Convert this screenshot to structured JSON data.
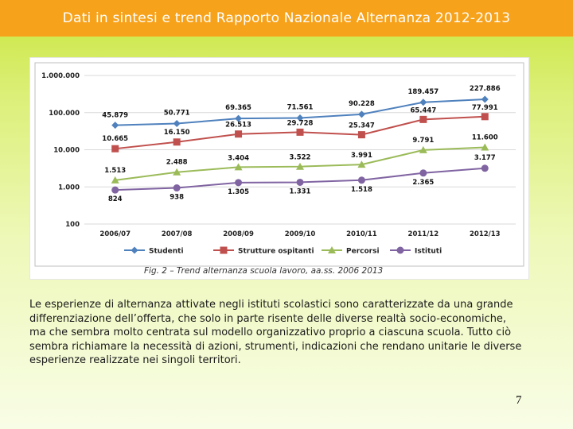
{
  "slide": {
    "title": "Dati in sintesi e trend Rapporto Nazionale Alternanza 2012-2013",
    "body": "Le esperienze di alternanza attivate negli istituti scolastici sono caratterizzate da una grande differenziazione dell’offerta, che solo in parte risente delle diverse realtà socio-economiche, ma che sembra molto centrata sul modello organizzativo proprio a ciascuna scuola. Tutto ciò sembra richiamare la necessità di azioni, strumenti, indicazioni che rendano unitarie le diverse esperienze realizzate nei singoli territori.",
    "page_number": "7",
    "title_bar_color": "#f7a21b"
  },
  "chart_data": {
    "type": "line",
    "caption": "Fig. 2 – Trend alternanza scuola lavoro, aa.ss. 2006 2013",
    "y_scale": "log",
    "ylim": [
      100,
      1000000
    ],
    "y_ticks": [
      100,
      1000,
      10000,
      100000,
      1000000
    ],
    "y_tick_labels": [
      "100",
      "1.000",
      "10.000",
      "100.000",
      "1.000.000"
    ],
    "categories": [
      "2006/07",
      "2007/08",
      "2008/09",
      "2009/10",
      "2010/11",
      "2011/12",
      "2012/13"
    ],
    "grid": true,
    "legend_position": "bottom",
    "series": [
      {
        "name": "Studenti",
        "color": "#4f81bd",
        "marker": "diamond",
        "values": [
          45879,
          50771,
          69365,
          71561,
          90228,
          189457,
          227886
        ],
        "labels": [
          "45.879",
          "50.771",
          "69.365",
          "71.561",
          "90.228",
          "189.457",
          "227.886"
        ]
      },
      {
        "name": "Strutture ospitanti",
        "color": "#c0504d",
        "marker": "square",
        "values": [
          10665,
          16150,
          26513,
          29728,
          25347,
          65447,
          77991
        ],
        "labels": [
          "10.665",
          "16.150",
          "26.513",
          "29.728",
          "25.347",
          "65.447",
          "77.991"
        ]
      },
      {
        "name": "Percorsi",
        "color": "#9bbb59",
        "marker": "triangle",
        "values": [
          1513,
          2488,
          3404,
          3522,
          3991,
          9791,
          11600
        ],
        "labels": [
          "1.513",
          "2.488",
          "3.404",
          "3.522",
          "3.991",
          "9.791",
          "11.600"
        ]
      },
      {
        "name": "Istituti",
        "color": "#8064a2",
        "marker": "circle",
        "values": [
          824,
          938,
          1305,
          1331,
          1518,
          2365,
          3177
        ],
        "labels": [
          "824",
          "938",
          "1.305",
          "1.331",
          "1.518",
          "2.365",
          "3.177"
        ]
      }
    ]
  }
}
